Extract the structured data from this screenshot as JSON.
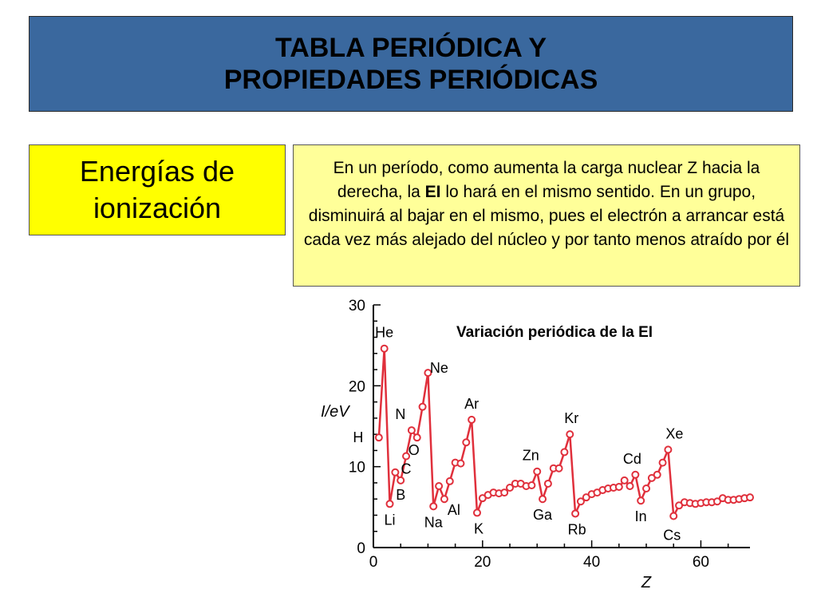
{
  "header": {
    "title_line1": "TABLA PERIÓDICA Y",
    "title_line2": "PROPIEDADES PERIÓDICAS"
  },
  "topic": {
    "line1": "Energías de",
    "line2": "ionización"
  },
  "explanation": {
    "part1": "En un período, como aumenta la carga nuclear Z hacia la derecha, la ",
    "bold": "EI",
    "part2": " lo hará en el mismo sentido. En un grupo, disminuirá al bajar en el mismo, pues el electrón a arrancar está cada vez más alejado del núcleo y por tanto menos atraído por él"
  },
  "chart_data": {
    "type": "line",
    "title": "Variación periódica de la EI",
    "xlabel": "Z",
    "ylabel": "I/eV",
    "xlim": [
      0,
      69
    ],
    "ylim": [
      0,
      30
    ],
    "xticks": [
      0,
      20,
      40,
      60
    ],
    "yticks": [
      0,
      10,
      20,
      30
    ],
    "grid": false,
    "colors": {
      "series": "#e0303c"
    },
    "series": [
      {
        "x": [
          1,
          2,
          3,
          4,
          5,
          6,
          7,
          8,
          9,
          10,
          11,
          12,
          13,
          14,
          15,
          16,
          17,
          18,
          19,
          20,
          21,
          22,
          23,
          24,
          25,
          26,
          27,
          28,
          29,
          30,
          31,
          32,
          33,
          34,
          35,
          36,
          37,
          38,
          39,
          40,
          41,
          42,
          43,
          44,
          45,
          46,
          47,
          48,
          49,
          50,
          51,
          52,
          53,
          54,
          55,
          56,
          57,
          58,
          59,
          60,
          61,
          62,
          63,
          64,
          65,
          66,
          67,
          68,
          69
        ],
        "y": [
          13.6,
          24.6,
          5.4,
          9.3,
          8.3,
          11.3,
          14.5,
          13.6,
          17.4,
          21.6,
          5.1,
          7.6,
          6.0,
          8.2,
          10.5,
          10.4,
          13.0,
          15.8,
          4.3,
          6.1,
          6.5,
          6.8,
          6.7,
          6.8,
          7.4,
          7.9,
          7.9,
          7.6,
          7.7,
          9.4,
          6.0,
          7.9,
          9.8,
          9.8,
          11.8,
          14.0,
          4.2,
          5.7,
          6.2,
          6.6,
          6.8,
          7.1,
          7.3,
          7.4,
          7.5,
          8.3,
          7.6,
          9.0,
          5.8,
          7.3,
          8.6,
          9.0,
          10.5,
          12.1,
          3.9,
          5.2,
          5.6,
          5.5,
          5.4,
          5.5,
          5.6,
          5.6,
          5.7,
          6.1,
          5.9,
          5.9,
          6.0,
          6.1,
          6.2
        ]
      }
    ],
    "annotations": [
      {
        "label": "He",
        "x": 2,
        "y": 24.6
      },
      {
        "label": "Ne",
        "x": 10,
        "y": 21.6
      },
      {
        "label": "H",
        "x": 1,
        "y": 13.6
      },
      {
        "label": "N",
        "x": 7,
        "y": 14.5
      },
      {
        "label": "O",
        "x": 8,
        "y": 13.6
      },
      {
        "label": "C",
        "x": 6,
        "y": 11.3
      },
      {
        "label": "B",
        "x": 5,
        "y": 8.3
      },
      {
        "label": "Li",
        "x": 3,
        "y": 5.4
      },
      {
        "label": "Na",
        "x": 11,
        "y": 5.1
      },
      {
        "label": "Al",
        "x": 13,
        "y": 6.0
      },
      {
        "label": "Ar",
        "x": 18,
        "y": 15.8
      },
      {
        "label": "K",
        "x": 19,
        "y": 4.3
      },
      {
        "label": "Zn",
        "x": 30,
        "y": 9.4
      },
      {
        "label": "Ga",
        "x": 31,
        "y": 6.0
      },
      {
        "label": "Kr",
        "x": 36,
        "y": 14.0
      },
      {
        "label": "Rb",
        "x": 37,
        "y": 4.2
      },
      {
        "label": "Cd",
        "x": 48,
        "y": 9.0
      },
      {
        "label": "In",
        "x": 49,
        "y": 5.8
      },
      {
        "label": "Xe",
        "x": 54,
        "y": 12.1
      },
      {
        "label": "Cs",
        "x": 55,
        "y": 3.9
      }
    ]
  }
}
